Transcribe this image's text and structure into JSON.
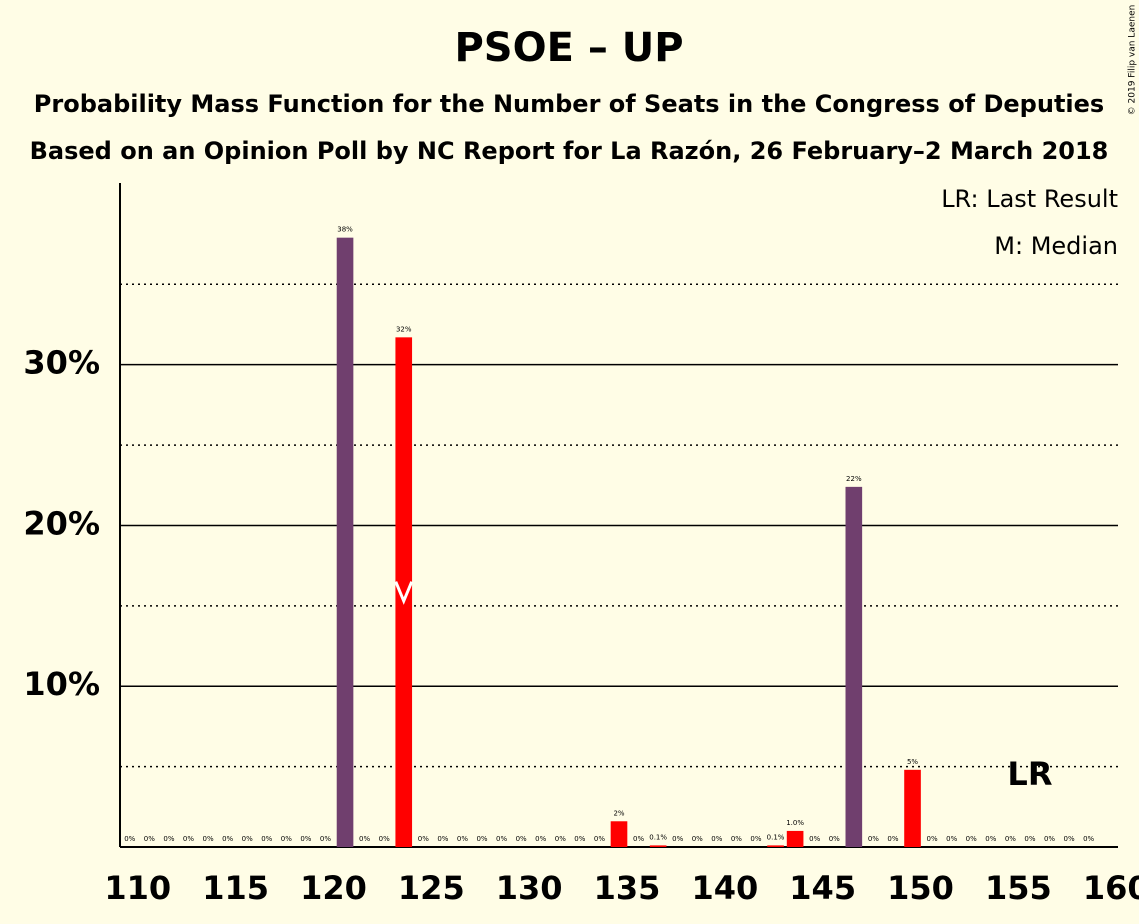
{
  "chart_data": {
    "type": "bar",
    "title": "PSOE – UP",
    "subtitle": "Probability Mass Function for the Number of Seats in the Congress of Deputies",
    "subtitle2": "Based on an Opinion Poll by NC Report for La Razón, 26 February–2 March 2018",
    "legend": [
      "LR: Last Result",
      "M: Median"
    ],
    "last_result_label": "LR",
    "last_result": 156,
    "median": 124,
    "copyright": "© 2019 Filip van Laenen",
    "x": [
      110,
      111,
      112,
      113,
      114,
      115,
      116,
      117,
      118,
      119,
      120,
      121,
      122,
      123,
      124,
      125,
      126,
      127,
      128,
      129,
      130,
      131,
      132,
      133,
      134,
      135,
      136,
      137,
      138,
      139,
      140,
      141,
      142,
      143,
      144,
      145,
      146,
      147,
      148,
      149,
      150,
      151,
      152,
      153,
      154,
      155,
      156,
      157,
      158,
      159
    ],
    "values": [
      0,
      0,
      0,
      0,
      0,
      0,
      0,
      0,
      0,
      0,
      0,
      37.9,
      0,
      0,
      31.7,
      0,
      0,
      0,
      0,
      0,
      0,
      0,
      0,
      0,
      0,
      1.6,
      0,
      0.1,
      0,
      0,
      0,
      0,
      0,
      0.1,
      1.0,
      0,
      0,
      22.4,
      0,
      0,
      4.8,
      0,
      0,
      0,
      0,
      0,
      0,
      0,
      0,
      0
    ],
    "value_labels": [
      "0%",
      "0%",
      "0%",
      "0%",
      "0%",
      "0%",
      "0%",
      "0%",
      "0%",
      "0%",
      "0%",
      "38%",
      "0%",
      "0%",
      "32%",
      "0%",
      "0%",
      "0%",
      "0%",
      "0%",
      "0%",
      "0%",
      "0%",
      "0%",
      "0%",
      "2%",
      "0%",
      "0.1%",
      "0%",
      "0%",
      "0%",
      "0%",
      "0%",
      "0.1%",
      "1.0%",
      "0%",
      "0%",
      "22%",
      "0%",
      "0%",
      "5%",
      "0%",
      "0%",
      "0%",
      "0%",
      "0%",
      "0%",
      "0%",
      "0%",
      "0%"
    ],
    "colors": [
      "#703f6e",
      "#703f6e",
      "#703f6e",
      "#703f6e",
      "#703f6e",
      "#703f6e",
      "#703f6e",
      "#703f6e",
      "#703f6e",
      "#703f6e",
      "#703f6e",
      "#703f6e",
      "#703f6e",
      "#ff0000",
      "#ff0000",
      "#ff0000",
      "#ff0000",
      "#ff0000",
      "#ff0000",
      "#ff0000",
      "#ff0000",
      "#ff0000",
      "#ff0000",
      "#ff0000",
      "#ff0000",
      "#ff0000",
      "#ff0000",
      "#ff0000",
      "#ff0000",
      "#ff0000",
      "#ff0000",
      "#ff0000",
      "#ff0000",
      "#ff0000",
      "#ff0000",
      "#703f6e",
      "#703f6e",
      "#703f6e",
      "#ff0000",
      "#ff0000",
      "#ff0000",
      "#ff0000",
      "#ff0000",
      "#ff0000",
      "#ff0000",
      "#ff0000",
      "#ff0000",
      "#ff0000",
      "#ff0000",
      "#ff0000"
    ],
    "xlim": [
      109.5,
      160.5
    ],
    "xticks": [
      110,
      115,
      120,
      125,
      130,
      135,
      140,
      145,
      150,
      155,
      160
    ],
    "ylim": [
      0,
      41.3
    ],
    "yticks": [
      {
        "value": 10,
        "label": "10%"
      },
      {
        "value": 20,
        "label": "20%"
      },
      {
        "value": 30,
        "label": "30%"
      }
    ],
    "minor_yticks": [
      5,
      15,
      25,
      35
    ],
    "grid": true
  }
}
